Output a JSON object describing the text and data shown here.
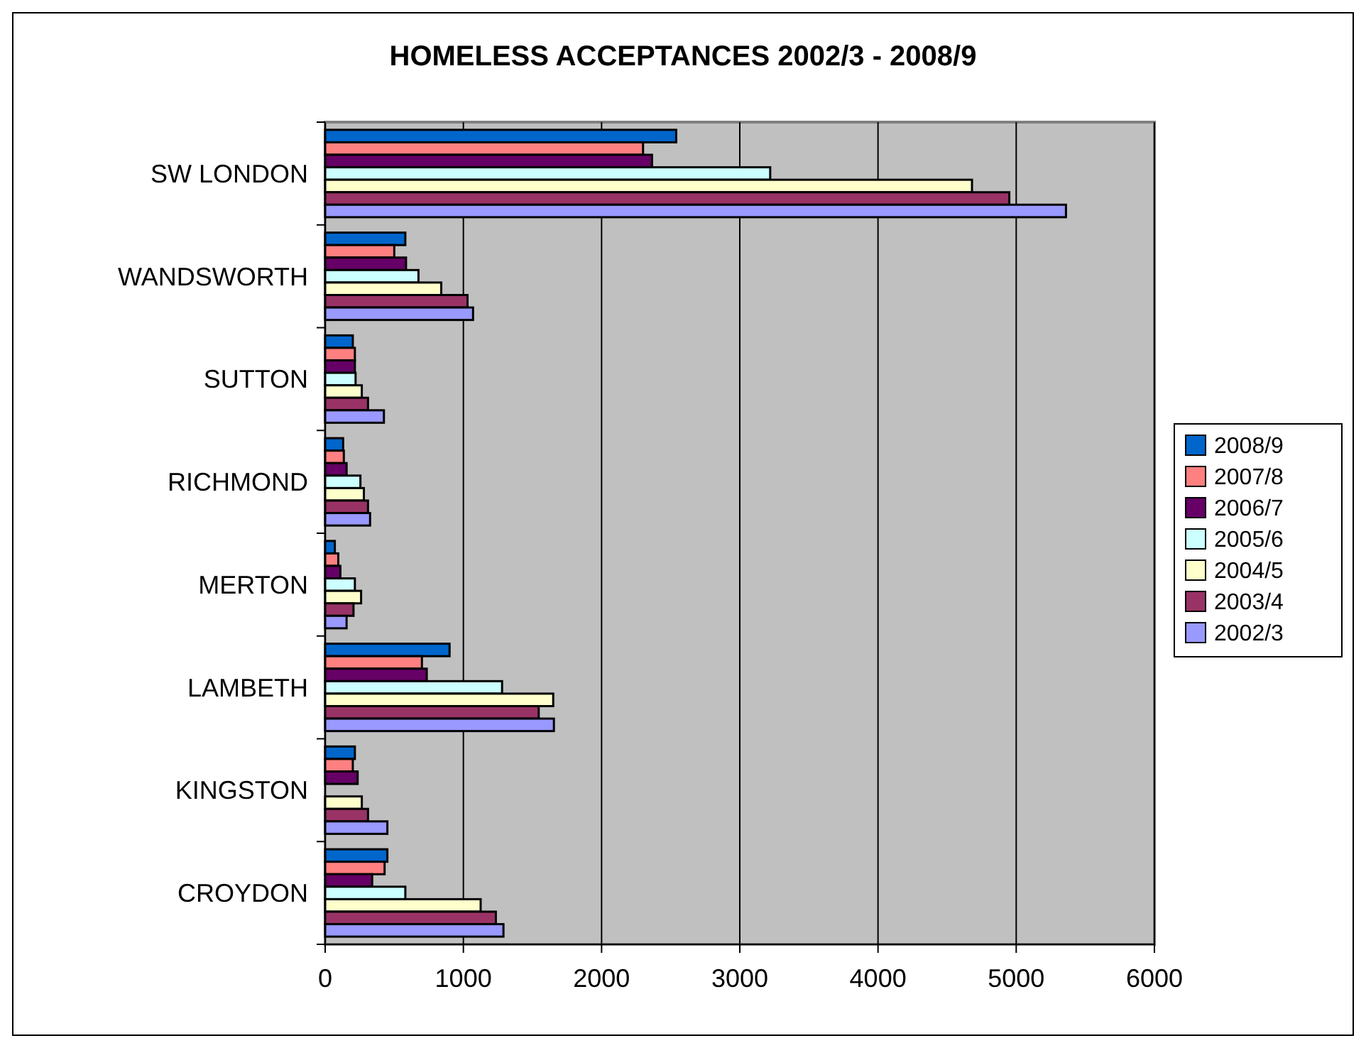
{
  "chart_data": {
    "type": "bar",
    "orientation": "horizontal",
    "title": "HOMELESS ACCEPTANCES 2002/3 - 2008/9",
    "categories": [
      "SW LONDON",
      "WANDSWORTH",
      "SUTTON",
      "RICHMOND",
      "MERTON",
      "LAMBETH",
      "KINGSTON",
      "CROYDON"
    ],
    "series": [
      {
        "name": "2008/9",
        "color": "#0066cc",
        "values": [
          2540,
          580,
          200,
          130,
          70,
          900,
          215,
          450
        ]
      },
      {
        "name": "2007/8",
        "color": "#ff8080",
        "values": [
          2300,
          500,
          215,
          135,
          95,
          700,
          200,
          430
        ]
      },
      {
        "name": "2006/7",
        "color": "#660066",
        "values": [
          2365,
          585,
          215,
          155,
          110,
          735,
          235,
          340
        ]
      },
      {
        "name": "2005/6",
        "color": "#ccffff",
        "values": [
          3220,
          675,
          220,
          255,
          215,
          1280,
          null,
          580
        ]
      },
      {
        "name": "2004/5",
        "color": "#ffffcc",
        "values": [
          4680,
          840,
          265,
          280,
          260,
          1650,
          265,
          1125
        ]
      },
      {
        "name": "2003/4",
        "color": "#993366",
        "values": [
          4950,
          1030,
          310,
          310,
          205,
          1545,
          310,
          1235
        ]
      },
      {
        "name": "2002/3",
        "color": "#9999ff",
        "values": [
          5360,
          1070,
          425,
          325,
          155,
          1655,
          450,
          1290
        ]
      }
    ],
    "xlim": [
      0,
      6000
    ],
    "xticks": [
      0,
      1000,
      2000,
      3000,
      4000,
      5000,
      6000
    ],
    "grid": "x",
    "legend": "right"
  }
}
